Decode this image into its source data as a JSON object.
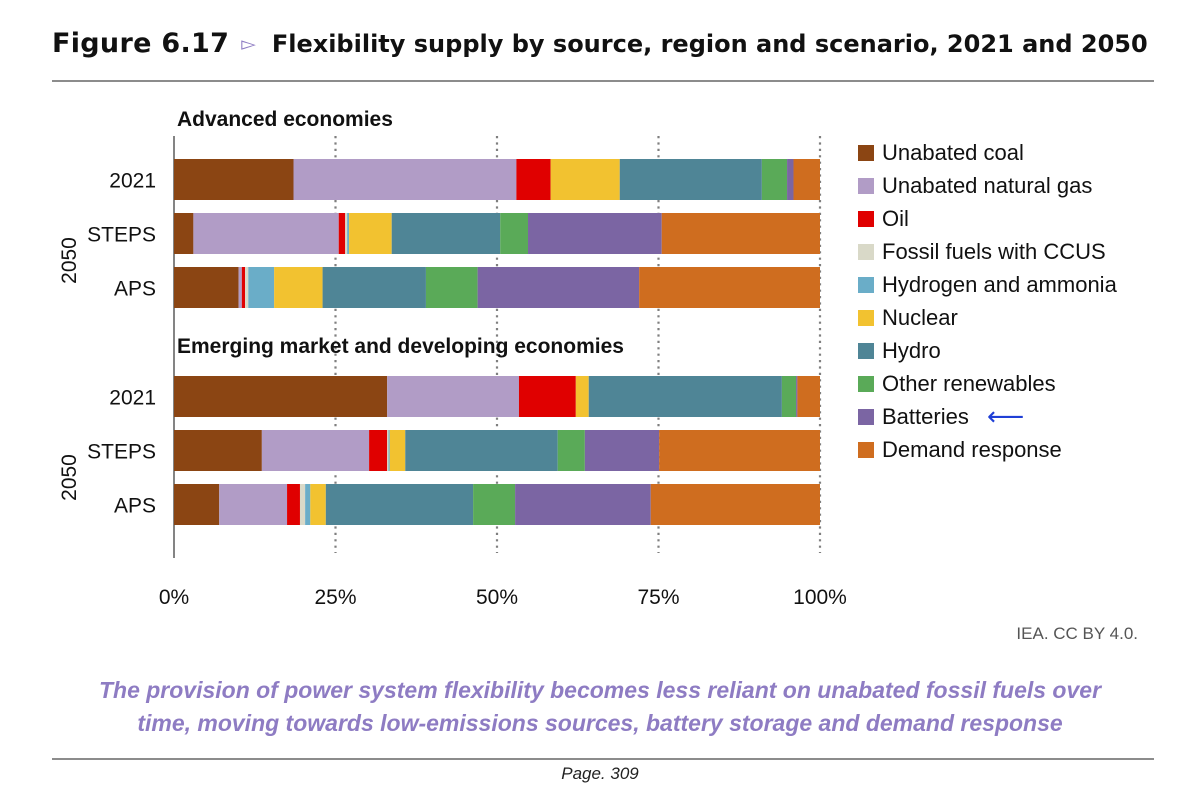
{
  "header": {
    "figure_label": "Figure 6.17",
    "arrow_glyph": "▻",
    "title": "Flexibility supply by source, region and scenario, 2021 and 2050"
  },
  "chart_data": {
    "type": "bar",
    "orientation": "horizontal",
    "stacked": true,
    "percent_stacked": true,
    "xlim": [
      0,
      100
    ],
    "x_ticks": [
      "0%",
      "25%",
      "50%",
      "75%",
      "100%"
    ],
    "grid": "vertical dotted",
    "legend_position": "right",
    "categories_order": [
      "Unabated coal",
      "Unabated natural gas",
      "Oil",
      "Fossil fuels with CCUS",
      "Hydrogen and ammonia",
      "Nuclear",
      "Hydro",
      "Other renewables",
      "Batteries",
      "Demand response"
    ],
    "colors": [
      "#8b4513",
      "#b19cc6",
      "#e00000",
      "#d9d9c8",
      "#6aadc8",
      "#f2c230",
      "#4f8596",
      "#5aaa58",
      "#7b65a3",
      "#cf6d1f"
    ],
    "panels": [
      {
        "title": "Advanced economies",
        "group_label": "2050",
        "rows": [
          {
            "label": "2021",
            "values": [
              18.5,
              34.5,
              5.3,
              0,
              0,
              10.7,
              22,
              3.9,
              1,
              4.1
            ]
          },
          {
            "label": "STEPS",
            "values": [
              3,
              22.5,
              1,
              0.3,
              0.3,
              6.6,
              16.8,
              4.3,
              20.7,
              24.5
            ]
          },
          {
            "label": "APS",
            "values": [
              10,
              0.5,
              0.5,
              0.5,
              4,
              7.5,
              16,
              8,
              25,
              28
            ]
          }
        ]
      },
      {
        "title": "Emerging market and developing economies",
        "group_label": "2050",
        "rows": [
          {
            "label": "2021",
            "values": [
              33,
              20.4,
              8.8,
              0,
              0,
              2,
              29.9,
              2.2,
              0.2,
              3.5
            ]
          },
          {
            "label": "STEPS",
            "values": [
              13.6,
              16.6,
              2.8,
              0.2,
              0.2,
              2.4,
              23.6,
              4.2,
              11.5,
              24.9
            ]
          },
          {
            "label": "APS",
            "values": [
              7,
              10.5,
              2,
              0.8,
              0.8,
              2.4,
              22.8,
              6.5,
              21,
              26.2
            ]
          }
        ]
      }
    ]
  },
  "legend": {
    "items": [
      {
        "label": "Unabated coal",
        "color": "#8b4513"
      },
      {
        "label": "Unabated natural gas",
        "color": "#b19cc6"
      },
      {
        "label": "Oil",
        "color": "#e00000"
      },
      {
        "label": "Fossil fuels with CCUS",
        "color": "#d9d9c8"
      },
      {
        "label": "Hydrogen and ammonia",
        "color": "#6aadc8"
      },
      {
        "label": "Nuclear",
        "color": "#f2c230"
      },
      {
        "label": "Hydro",
        "color": "#4f8596"
      },
      {
        "label": "Other renewables",
        "color": "#5aaa58"
      },
      {
        "label": "Batteries",
        "color": "#7b65a3"
      },
      {
        "label": "Demand response",
        "color": "#cf6d1f"
      }
    ],
    "highlight_glyph": "⟵"
  },
  "source": "IEA. CC BY 4.0.",
  "takeaway": {
    "line1": "The provision of power system flexibility becomes less reliant on unabated fossil fuels over",
    "line2": "time, moving towards low-emissions sources, battery storage and demand response"
  },
  "page": "Page. 309"
}
